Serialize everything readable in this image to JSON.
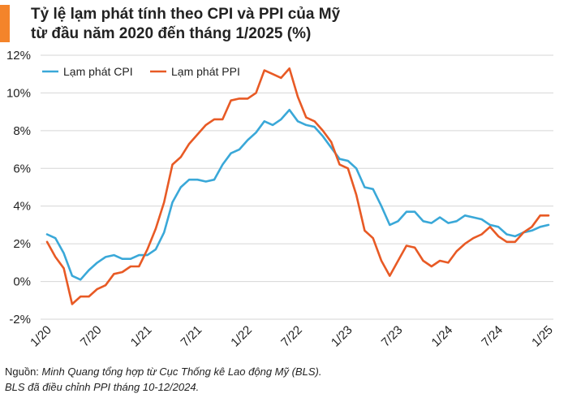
{
  "title_line1": "Tỷ lệ lạm phát tính theo CPI và PPI của Mỹ",
  "title_line2": "từ đầu năm 2020 đến tháng 1/2025 (%)",
  "accent_color": "#f4842a",
  "footnote": {
    "source_label": "Nguồn: ",
    "source_text": "Minh Quang tổng hợp từ Cục Thống kê Lao động Mỹ (BLS).",
    "note": "BLS đã điều chỉnh PPI tháng 10-12/2024."
  },
  "chart_data": {
    "type": "line",
    "title": "Tỷ lệ lạm phát tính theo CPI và PPI của Mỹ từ đầu năm 2020 đến tháng 1/2025 (%)",
    "xlabel": "",
    "ylabel": "",
    "ylim": [
      -2,
      12
    ],
    "y_ticks": [
      "-2%",
      "0%",
      "2%",
      "4%",
      "6%",
      "8%",
      "10%",
      "12%"
    ],
    "x_ticks": [
      {
        "index": 0,
        "label": "1/20"
      },
      {
        "index": 6,
        "label": "7/20"
      },
      {
        "index": 12,
        "label": "1/21"
      },
      {
        "index": 18,
        "label": "7/21"
      },
      {
        "index": 24,
        "label": "1/22"
      },
      {
        "index": 30,
        "label": "7/22"
      },
      {
        "index": 36,
        "label": "1/23"
      },
      {
        "index": 42,
        "label": "7/23"
      },
      {
        "index": 48,
        "label": "1/24"
      },
      {
        "index": 54,
        "label": "7/24"
      },
      {
        "index": 60,
        "label": "1/25"
      }
    ],
    "grid": true,
    "legend_position": "top-left",
    "series": [
      {
        "name": "Lạm phát CPI",
        "color": "#3aa8d8",
        "values": [
          2.5,
          2.3,
          1.5,
          0.3,
          0.1,
          0.6,
          1.0,
          1.3,
          1.4,
          1.2,
          1.2,
          1.4,
          1.4,
          1.7,
          2.6,
          4.2,
          5.0,
          5.4,
          5.4,
          5.3,
          5.4,
          6.2,
          6.8,
          7.0,
          7.5,
          7.9,
          8.5,
          8.3,
          8.6,
          9.1,
          8.5,
          8.3,
          8.2,
          7.7,
          7.1,
          6.5,
          6.4,
          6.0,
          5.0,
          4.9,
          4.0,
          3.0,
          3.2,
          3.7,
          3.7,
          3.2,
          3.1,
          3.4,
          3.1,
          3.2,
          3.5,
          3.4,
          3.3,
          3.0,
          2.9,
          2.5,
          2.4,
          2.6,
          2.7,
          2.9,
          3.0
        ]
      },
      {
        "name": "Lạm phát PPI",
        "color": "#e85a25",
        "values": [
          2.1,
          1.3,
          0.7,
          -1.2,
          -0.8,
          -0.8,
          -0.4,
          -0.2,
          0.4,
          0.5,
          0.8,
          0.8,
          1.7,
          2.8,
          4.2,
          6.2,
          6.6,
          7.3,
          7.8,
          8.3,
          8.6,
          8.6,
          9.6,
          9.7,
          9.7,
          10.0,
          11.2,
          11.0,
          10.8,
          11.3,
          9.8,
          8.7,
          8.5,
          8.0,
          7.4,
          6.2,
          6.0,
          4.6,
          2.7,
          2.3,
          1.1,
          0.3,
          1.1,
          1.9,
          1.8,
          1.1,
          0.8,
          1.1,
          1.0,
          1.6,
          2.0,
          2.3,
          2.5,
          2.9,
          2.4,
          2.1,
          2.1,
          2.6,
          2.9,
          3.5,
          3.5
        ]
      }
    ]
  }
}
